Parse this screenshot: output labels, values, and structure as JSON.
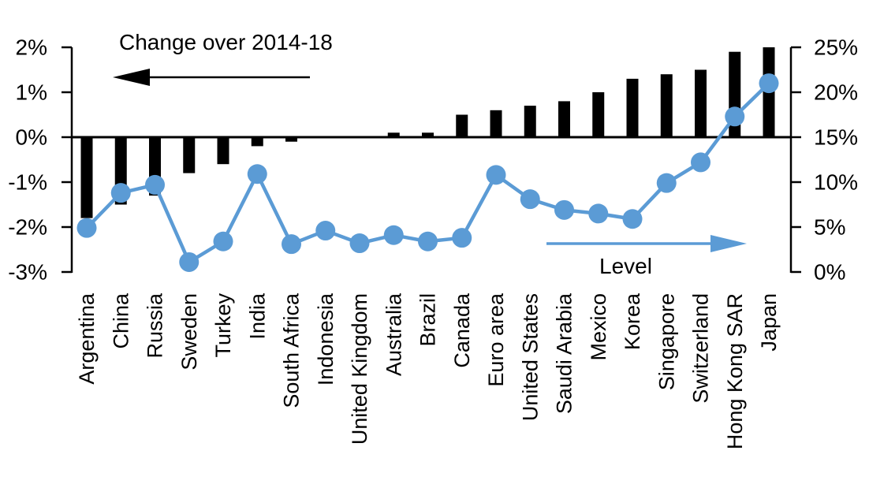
{
  "chart_data": {
    "type": "bar+line",
    "description": "Dual-axis combo chart: black bars show change over 2014-18 (left axis, percentage points); blue line with circle markers shows level (right axis, percent).",
    "categories": [
      "Argentina",
      "China",
      "Russia",
      "Sweden",
      "Turkey",
      "India",
      "South Africa",
      "Indonesia",
      "United Kingdom",
      "Australia",
      "Brazil",
      "Canada",
      "Euro area",
      "United States",
      "Saudi Arabia",
      "Mexico",
      "Korea",
      "Singapore",
      "Switzerland",
      "Hong Kong SAR",
      "Japan"
    ],
    "series": [
      {
        "name": "Change over 2014-18",
        "type": "bar",
        "axis": "left",
        "values": [
          -1.8,
          -1.5,
          -1.3,
          -0.8,
          -0.6,
          -0.2,
          -0.1,
          0,
          0,
          0.1,
          0.1,
          0.5,
          0.6,
          0.7,
          0.8,
          1.0,
          1.3,
          1.4,
          1.5,
          1.9,
          2.0
        ]
      },
      {
        "name": "Level",
        "type": "line",
        "axis": "right",
        "values": [
          4.9,
          8.8,
          9.7,
          1.1,
          3.4,
          10.9,
          3.1,
          4.6,
          3.2,
          4.1,
          3.4,
          3.8,
          10.8,
          8.1,
          6.9,
          6.5,
          5.9,
          9.9,
          12.2,
          17.3,
          21.0
        ]
      }
    ],
    "left_axis": {
      "min": -3,
      "max": 2,
      "tick_step": 1,
      "tick_labels": [
        "2%",
        "1%",
        "0%",
        "-1%",
        "-2%",
        "-3%"
      ]
    },
    "right_axis": {
      "min": 0,
      "max": 25,
      "tick_step": 5,
      "tick_labels": [
        "25%",
        "20%",
        "15%",
        "10%",
        "5%",
        "0%"
      ]
    },
    "annotations": {
      "bar_series_label": "Change over 2014-18",
      "line_series_label": "Level"
    },
    "colors": {
      "bar": "#000000",
      "line": "#5B9BD5",
      "text": "#000000"
    },
    "legend_position": "annotated arrows inside plot",
    "grid": false
  }
}
